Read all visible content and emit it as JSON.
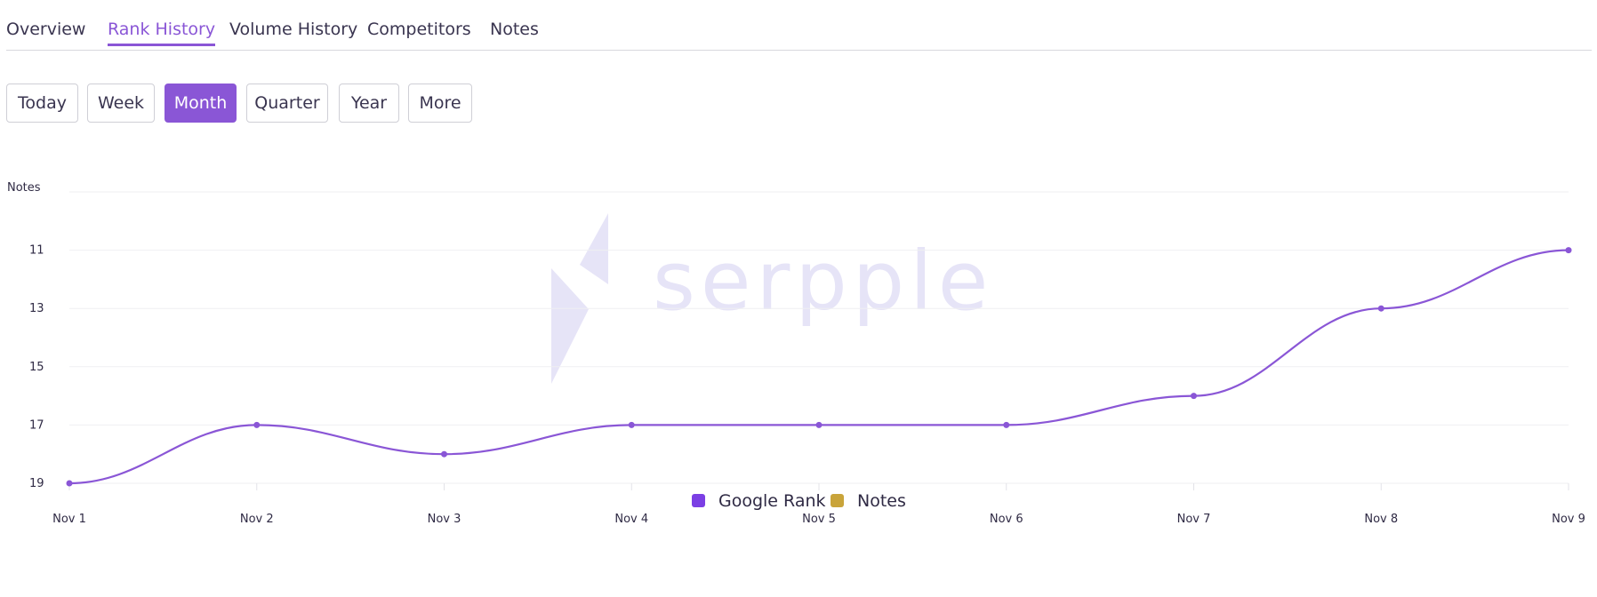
{
  "tabs": [
    {
      "label": "Overview",
      "active": false
    },
    {
      "label": "Rank History",
      "active": true
    },
    {
      "label": "Volume History",
      "active": false
    },
    {
      "label": "Competitors",
      "active": false
    },
    {
      "label": "Notes",
      "active": false
    }
  ],
  "ranges": [
    {
      "label": "Today",
      "active": false
    },
    {
      "label": "Week",
      "active": false
    },
    {
      "label": "Month",
      "active": true
    },
    {
      "label": "Quarter",
      "active": false
    },
    {
      "label": "Year",
      "active": false
    },
    {
      "label": "More",
      "active": false
    }
  ],
  "colors": {
    "accent": "#8a56d6",
    "google_rank": "#7b3fe4",
    "notes": "#c9a43a",
    "watermark": "#e6e4f7"
  },
  "watermark": {
    "text": "serpple"
  },
  "chart_data": {
    "type": "line",
    "x": [
      "Nov 1",
      "Nov 2",
      "Nov 3",
      "Nov 4",
      "Nov 5",
      "Nov 6",
      "Nov 7",
      "Nov 8",
      "Nov 9"
    ],
    "series": [
      {
        "name": "Google Rank",
        "values": [
          19,
          17,
          18,
          17,
          17,
          17,
          16,
          13,
          11
        ]
      }
    ],
    "y_top_label": "Notes",
    "y_ticks": [
      11,
      13,
      15,
      17,
      19
    ],
    "ylim": [
      9,
      19
    ],
    "y_reversed": true,
    "legend": [
      {
        "name": "Google Rank",
        "color": "#7b3fe4"
      },
      {
        "name": "Notes",
        "color": "#c9a43a"
      }
    ],
    "legend_position": "bottom",
    "grid": true,
    "smooth": true
  }
}
